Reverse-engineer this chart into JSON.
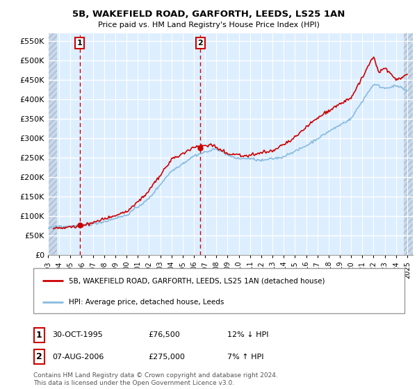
{
  "title_line1": "5B, WAKEFIELD ROAD, GARFORTH, LEEDS, LS25 1AN",
  "title_line2": "Price paid vs. HM Land Registry's House Price Index (HPI)",
  "yticks": [
    0,
    50000,
    100000,
    150000,
    200000,
    250000,
    300000,
    350000,
    400000,
    450000,
    500000,
    550000
  ],
  "ytick_labels": [
    "£0",
    "£50K",
    "£100K",
    "£150K",
    "£200K",
    "£250K",
    "£300K",
    "£350K",
    "£400K",
    "£450K",
    "£500K",
    "£550K"
  ],
  "xmin": 1993.0,
  "xmax": 2025.5,
  "ymin": 0,
  "ymax": 570000,
  "sale1_x": 1995.83,
  "sale1_y": 76500,
  "sale2_x": 2006.58,
  "sale2_y": 275000,
  "sale_color": "#cc0000",
  "hpi_color": "#88bbdd",
  "dashed_line_color": "#cc0000",
  "chart_bg": "#ddeeff",
  "hatch_bg": "#c8d8ea",
  "grid_color": "#ffffff",
  "legend_label1": "5B, WAKEFIELD ROAD, GARFORTH, LEEDS, LS25 1AN (detached house)",
  "legend_label2": "HPI: Average price, detached house, Leeds",
  "table_row1": [
    "1",
    "30-OCT-1995",
    "£76,500",
    "12% ↓ HPI"
  ],
  "table_row2": [
    "2",
    "07-AUG-2006",
    "£275,000",
    "7% ↑ HPI"
  ],
  "footer": "Contains HM Land Registry data © Crown copyright and database right 2024.\nThis data is licensed under the Open Government Licence v3.0."
}
